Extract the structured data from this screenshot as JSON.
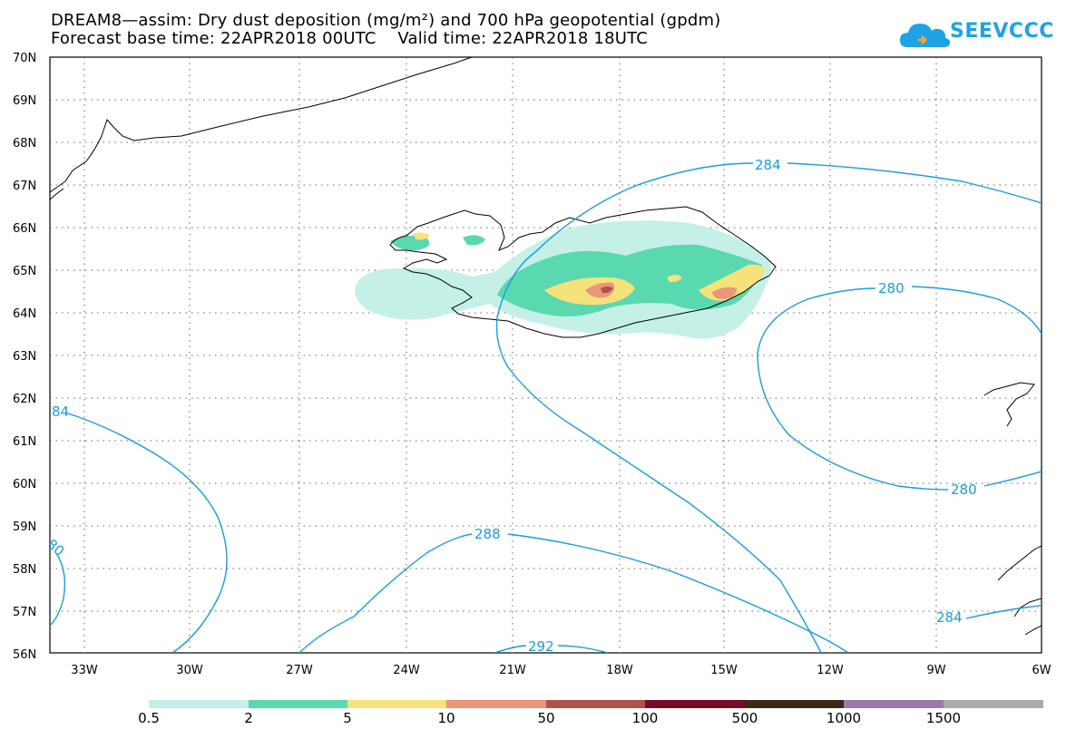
{
  "title": {
    "line1": "DREAM8—assim: Dry dust deposition (mg/m²) and 700 hPa geopotential (gpdm)",
    "line2": "Forecast base time: 22APR2018 00UTC    Valid time: 22APR2018 18UTC"
  },
  "logo": {
    "text": "SEEVCCC",
    "color": "#1ea3e6"
  },
  "map": {
    "lat_labels": [
      "70N",
      "69N",
      "68N",
      "67N",
      "66N",
      "65N",
      "64N",
      "63N",
      "62N",
      "61N",
      "60N",
      "59N",
      "58N",
      "57N",
      "56N"
    ],
    "lon_labels": [
      "33W",
      "30W",
      "27W",
      "24W",
      "21W",
      "18W",
      "15W",
      "12W",
      "9W",
      "6W"
    ],
    "contour_labels": {
      "c284_top": "284",
      "c280_top": "280",
      "c280_bottom": "280",
      "c284_left": "84",
      "c280_left": "80",
      "c288": "288",
      "c292": "292",
      "c284_bottom": "284"
    },
    "contour_color": "#1a9ce0"
  },
  "legend": {
    "labels": [
      "0.5",
      "2",
      "5",
      "10",
      "50",
      "100",
      "500",
      "1000",
      "1500"
    ],
    "colors": [
      "#c4f0e8",
      "#5ad8b0",
      "#f6e27a",
      "#e9967a",
      "#b0524a",
      "#7a0a2a",
      "#3a2a18",
      "#9a7aa8",
      "#aaaaaa"
    ]
  }
}
